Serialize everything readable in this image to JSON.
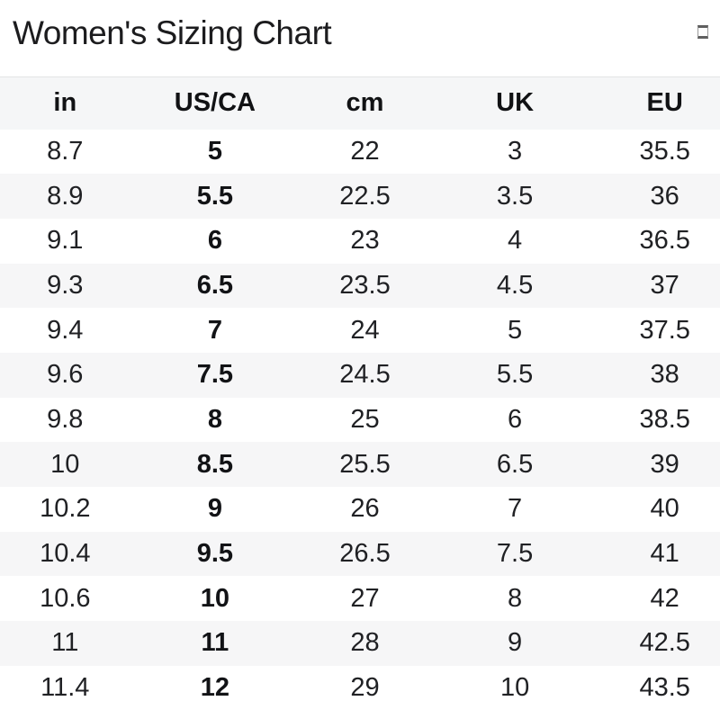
{
  "page": {
    "title": "Women's Sizing Chart",
    "corner_icon": "missing-glyph-box"
  },
  "table": {
    "columns": [
      "in",
      "US/CA",
      "cm",
      "UK",
      "EU"
    ],
    "bold_column": "US/CA",
    "rows": [
      [
        "8.7",
        "5",
        "22",
        "3",
        "35.5"
      ],
      [
        "8.9",
        "5.5",
        "22.5",
        "3.5",
        "36"
      ],
      [
        "9.1",
        "6",
        "23",
        "4",
        "36.5"
      ],
      [
        "9.3",
        "6.5",
        "23.5",
        "4.5",
        "37"
      ],
      [
        "9.4",
        "7",
        "24",
        "5",
        "37.5"
      ],
      [
        "9.6",
        "7.5",
        "24.5",
        "5.5",
        "38"
      ],
      [
        "9.8",
        "8",
        "25",
        "6",
        "38.5"
      ],
      [
        "10",
        "8.5",
        "25.5",
        "6.5",
        "39"
      ],
      [
        "10.2",
        "9",
        "26",
        "7",
        "40"
      ],
      [
        "10.4",
        "9.5",
        "26.5",
        "7.5",
        "41"
      ],
      [
        "10.6",
        "10",
        "27",
        "8",
        "42"
      ],
      [
        "11",
        "11",
        "28",
        "9",
        "42.5"
      ],
      [
        "11.4",
        "12",
        "29",
        "10",
        "43.5"
      ]
    ]
  },
  "chart_data": {
    "type": "table",
    "title": "Women's Sizing Chart",
    "columns": [
      "in",
      "US/CA",
      "cm",
      "UK",
      "EU"
    ],
    "rows": [
      [
        8.7,
        5,
        22,
        3,
        35.5
      ],
      [
        8.9,
        5.5,
        22.5,
        3.5,
        36
      ],
      [
        9.1,
        6,
        23,
        4,
        36.5
      ],
      [
        9.3,
        6.5,
        23.5,
        4.5,
        37
      ],
      [
        9.4,
        7,
        24,
        5,
        37.5
      ],
      [
        9.6,
        7.5,
        24.5,
        5.5,
        38
      ],
      [
        9.8,
        8,
        25,
        6,
        38.5
      ],
      [
        10,
        8.5,
        25.5,
        6.5,
        39
      ],
      [
        10.2,
        9,
        26,
        7,
        40
      ],
      [
        10.4,
        9.5,
        26.5,
        7.5,
        41
      ],
      [
        10.6,
        10,
        27,
        8,
        42
      ],
      [
        11,
        11,
        28,
        9,
        42.5
      ],
      [
        11.4,
        12,
        29,
        10,
        43.5
      ]
    ]
  },
  "colors": {
    "stripe": "#f6f6f7",
    "header_bg": "#f5f6f7",
    "text": "#202124",
    "border": "#e3e4e5"
  }
}
